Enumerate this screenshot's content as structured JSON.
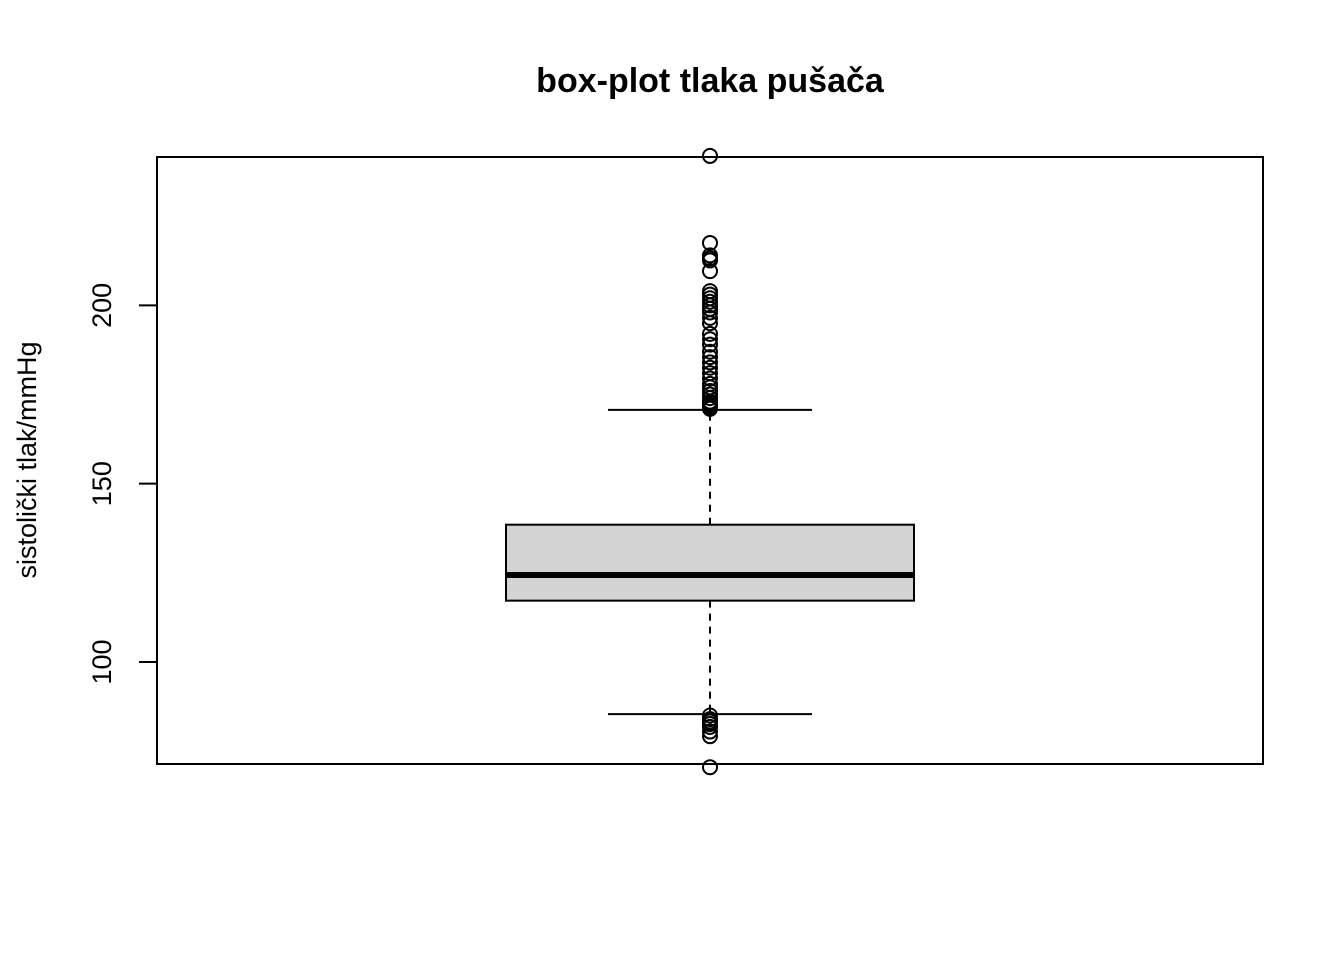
{
  "chart_data": {
    "type": "box",
    "title": "box-plot tlaka pušača",
    "ylabel": "sistolički tlak/mmHg",
    "xlabel": "",
    "ylim": [
      71.4,
      241.6
    ],
    "yticks": [
      100,
      150,
      200
    ],
    "grid": false,
    "legend": "none",
    "box": {
      "q1": 117.2,
      "median": 124.4,
      "q3": 138.5,
      "whisker_low": 85.4,
      "whisker_high": 170.7,
      "fill_color": "#d3d3d3"
    },
    "outliers": [
      241.9,
      217.5,
      214.0,
      212.6,
      213.2,
      209.6,
      204.0,
      203.0,
      202.0,
      201.0,
      200.0,
      199.0,
      198.0,
      196.5,
      195.0,
      192.0,
      190.5,
      189.0,
      187.0,
      185.5,
      184.0,
      182.5,
      181.0,
      179.5,
      178.0,
      177.0,
      176.0,
      175.0,
      174.0,
      173.0,
      172.5,
      172.0,
      171.5,
      171.0,
      85.0,
      84.0,
      83.3,
      82.6,
      81.8,
      80.5,
      79.2,
      70.5
    ]
  }
}
